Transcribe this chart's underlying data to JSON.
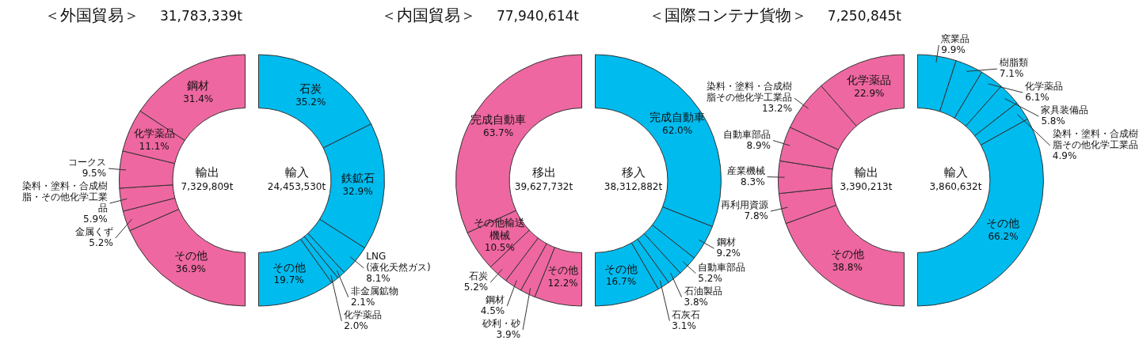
{
  "chart_data": [
    {
      "type": "donut",
      "title": "＜外国貿易＞",
      "subtitle": "31,783,339t",
      "categories": [
        "鋼材",
        "化学薬品",
        "コークス",
        "染料・塗料・合成樹脂・その他化学工業品",
        "金属くず",
        "その他"
      ],
      "values": [
        31.4,
        11.1,
        9.5,
        5.9,
        5.2,
        36.9
      ],
      "value_labels": [
        "31.4%",
        "11.1%",
        "9.5%",
        "5.9%",
        "5.2%",
        "36.9%"
      ],
      "colors": [
        "#ee67a0",
        "#ee67a0",
        "#ee67a0",
        "#ee67a0",
        "#ee67a0",
        "#ee67a0"
      ],
      "annotations": [
        "輸出",
        "7,329,809t"
      ]
    },
    {
      "type": "donut",
      "categories": [
        "石炭",
        "鉄鉱石",
        "LNG(液化天然ガス)",
        "非金属鉱物",
        "化学薬品",
        "その他"
      ],
      "values": [
        35.2,
        32.9,
        8.1,
        2.1,
        2.0,
        19.7
      ],
      "value_labels": [
        "35.2%",
        "32.9%",
        "8.1%",
        "2.1%",
        "2.0%",
        "19.7%"
      ],
      "colors": [
        "#00bbee",
        "#00bbee",
        "#00bbee",
        "#00bbee",
        "#00bbee",
        "#00bbee"
      ],
      "annotations": [
        "輸入",
        "24,453,530t"
      ]
    },
    {
      "type": "donut",
      "title": "＜内国貿易＞",
      "subtitle": "77,940,614t",
      "categories": [
        "完成自動車",
        "その他輸送機械",
        "石炭",
        "鋼材",
        "砂利・砂",
        "その他"
      ],
      "values": [
        63.7,
        10.5,
        5.2,
        4.5,
        3.9,
        12.2
      ],
      "value_labels": [
        "63.7%",
        "10.5%",
        "5.2%",
        "4.5%",
        "3.9%",
        "12.2%"
      ],
      "colors": [
        "#ee67a0",
        "#ee67a0",
        "#ee67a0",
        "#ee67a0",
        "#ee67a0",
        "#ee67a0"
      ],
      "annotations": [
        "移出",
        "39,627,732t"
      ]
    },
    {
      "type": "donut",
      "categories": [
        "完成自動車",
        "鋼材",
        "自動車部品",
        "石油製品",
        "石灰石",
        "その他"
      ],
      "values": [
        62.0,
        9.2,
        5.2,
        3.8,
        3.1,
        16.7
      ],
      "value_labels": [
        "62.0%",
        "9.2%",
        "5.2%",
        "3.8%",
        "3.1%",
        "16.7%"
      ],
      "colors": [
        "#00bbee",
        "#00bbee",
        "#00bbee",
        "#00bbee",
        "#00bbee",
        "#00bbee"
      ],
      "annotations": [
        "移入",
        "38,312,882t"
      ]
    },
    {
      "type": "donut",
      "title": "＜国際コンテナ貨物＞",
      "subtitle": "7,250,845t",
      "categories": [
        "化学薬品",
        "染料・塗料・合成樹脂その他化学工業品",
        "自動車部品",
        "産業機械",
        "再利用資源",
        "その他"
      ],
      "values": [
        22.9,
        13.2,
        8.9,
        8.3,
        7.8,
        38.8
      ],
      "value_labels": [
        "22.9%",
        "13.2%",
        "8.9%",
        "8.3%",
        "7.8%",
        "38.8%"
      ],
      "colors": [
        "#ee67a0",
        "#ee67a0",
        "#ee67a0",
        "#ee67a0",
        "#ee67a0",
        "#ee67a0"
      ],
      "annotations": [
        "輸出",
        "3,390,213t"
      ]
    },
    {
      "type": "donut",
      "categories": [
        "窯業品",
        "樹脂類",
        "化学薬品",
        "家具装備品",
        "染料・塗料・合成樹脂その他化学工業品",
        "その他"
      ],
      "values": [
        9.9,
        7.1,
        6.1,
        5.8,
        4.9,
        66.2
      ],
      "value_labels": [
        "9.9%",
        "7.1%",
        "6.1%",
        "5.8%",
        "4.9%",
        "66.2%"
      ],
      "colors": [
        "#00bbee",
        "#00bbee",
        "#00bbee",
        "#00bbee",
        "#00bbee",
        "#00bbee"
      ],
      "annotations": [
        "輸入",
        "3,860,632t"
      ]
    }
  ]
}
